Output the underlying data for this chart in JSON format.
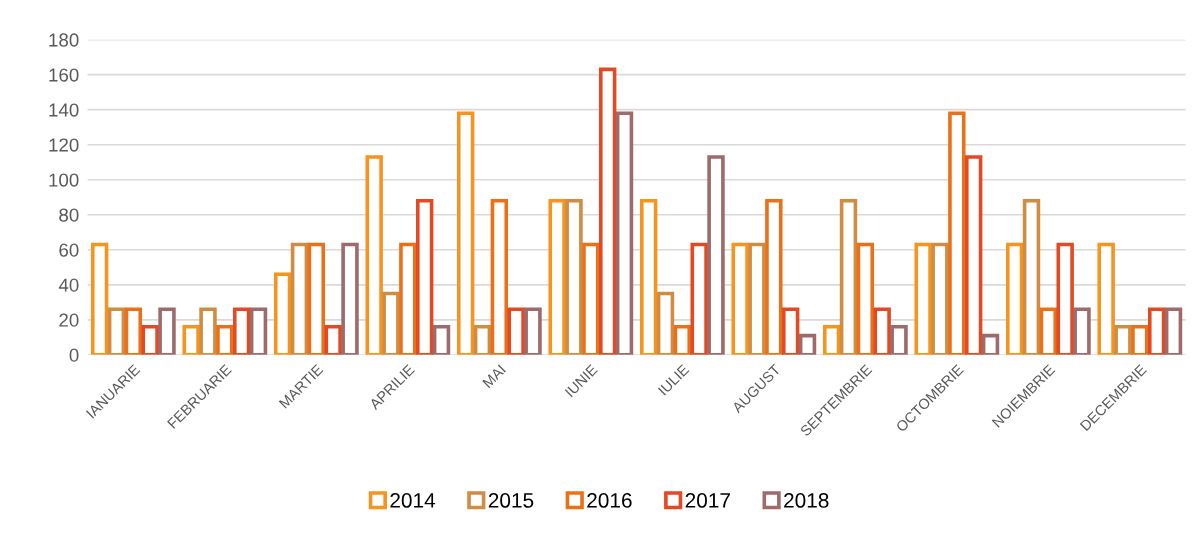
{
  "chart_data": {
    "type": "bar",
    "categories": [
      "IANUARIE",
      "FEBRUARIE",
      "MARTIE",
      "APRILIE",
      "MAI",
      "IUNIE",
      "IULIE",
      "AUGUST",
      "SEPTEMBRIE",
      "OCTOMBRIE",
      "NOIEMBRIE",
      "DECEMBRIE"
    ],
    "series": [
      {
        "name": "2014",
        "color": "#f7941d",
        "values": [
          63,
          16,
          46,
          113,
          138,
          88,
          88,
          63,
          16,
          63,
          63,
          63
        ]
      },
      {
        "name": "2015",
        "color": "#d08c40",
        "values": [
          26,
          26,
          63,
          35,
          16,
          88,
          35,
          63,
          88,
          63,
          88,
          16
        ]
      },
      {
        "name": "2016",
        "color": "#eb7118",
        "values": [
          26,
          16,
          63,
          63,
          88,
          63,
          16,
          88,
          63,
          138,
          26,
          16
        ]
      },
      {
        "name": "2017",
        "color": "#e34a24",
        "values": [
          16,
          26,
          16,
          88,
          26,
          163,
          63,
          26,
          26,
          113,
          63,
          26
        ]
      },
      {
        "name": "2018",
        "color": "#9e6a6a",
        "values": [
          26,
          26,
          63,
          16,
          26,
          138,
          113,
          11,
          16,
          11,
          26,
          26
        ]
      }
    ],
    "ylim": [
      0,
      180
    ],
    "yticks": [
      0,
      20,
      40,
      60,
      80,
      100,
      120,
      140,
      160,
      180
    ],
    "grid": "y",
    "legend": "bottom"
  }
}
